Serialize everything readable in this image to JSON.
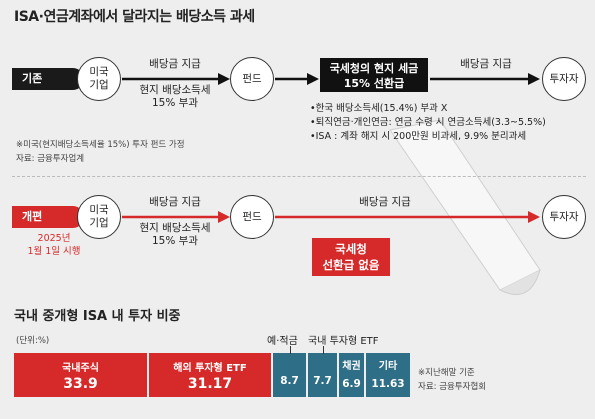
{
  "title": "ISA·연금계좌에서 달라지는 배당소득 과세",
  "current": {
    "tag": "기존",
    "us_company": [
      "미국",
      "기업"
    ],
    "label_dividend_1": "배당금 지급",
    "label_tax_1": "현지 배당소득세",
    "label_tax_2": "15% 부과",
    "fund": "펀드",
    "nts_box_1": "국세청의 현지 세금",
    "nts_box_2": "15% 선환급",
    "label_dividend_2": "배당금 지급",
    "investor": "투자자",
    "notes": [
      "•한국 배당소득세(15.4%) 부과 X",
      "•퇴직연금·개인연금: 연금 수령 시 연금소득세(3.3~5.5%)",
      "•ISA : 계좌 해지 시 200만원 비과세, 9.9% 분리과세"
    ],
    "footnote_1": "※미국(현지배당소득세율 15%) 투자 펀드 가정",
    "footnote_2": "자료: 금융투자업계"
  },
  "revised": {
    "tag": "개편",
    "date_1": "2025년",
    "date_2": "1월 1일 시행",
    "us_company": [
      "미국",
      "기업"
    ],
    "label_dividend_1": "배당금 지급",
    "label_tax_1": "현지 배당소득세",
    "label_tax_2": "15% 부과",
    "fund": "펀드",
    "label_dividend_2": "배당금 지급",
    "investor": "투자자",
    "nts_box_1": "국세청",
    "nts_box_2": "선환급 없음"
  },
  "section_title": "국내 중개형 ISA 내 투자 비중",
  "unit": "(단위:%)",
  "chart_data": {
    "type": "bar",
    "title": "국내 중개형 ISA 내 투자 비중",
    "unit": "(단위:%)",
    "categories": [
      "국내주식",
      "해외 투자형 ETF",
      "예·적금",
      "국내 투자형 ETF",
      "채권",
      "기타"
    ],
    "values": [
      33.9,
      31.17,
      8.7,
      7.7,
      6.9,
      11.63
    ],
    "value_labels": [
      "33.9",
      "31.17",
      "8.7",
      "7.7",
      "6.9",
      "11.63"
    ],
    "colors": [
      "#d62a2a",
      "#d62a2a",
      "#2e6e86",
      "#2e6e86",
      "#2e6e86",
      "#2e6e86"
    ]
  },
  "chart_note_1": "※지난해말 기준",
  "chart_note_2": "자료: 금융투자협회",
  "colors": {
    "red": "#d62a2a",
    "dark": "#111111",
    "teal": "#2e6e86"
  }
}
